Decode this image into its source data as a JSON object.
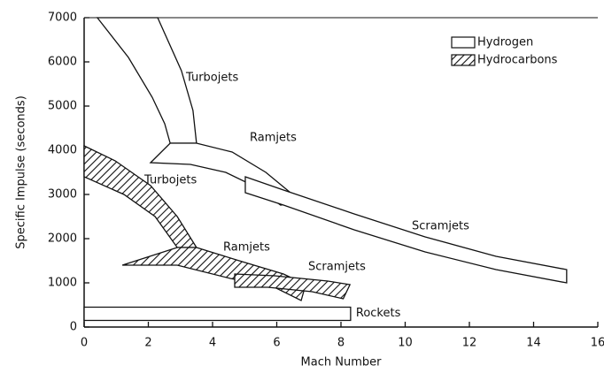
{
  "chart_data": {
    "type": "band",
    "xlabel": "Mach Number",
    "ylabel": "Specific Impulse (seconds)",
    "xlim": [
      0,
      16
    ],
    "ylim": [
      0,
      7000
    ],
    "xticks": [
      0,
      2,
      4,
      6,
      8,
      10,
      12,
      14,
      16
    ],
    "yticks": [
      0,
      1000,
      2000,
      3000,
      4000,
      5000,
      6000,
      7000
    ],
    "series": [
      {
        "name": "Hydrogen",
        "pattern": "none",
        "bands": [
          {
            "label": "Turbojets",
            "x": [
              0.41,
              1.38,
              2.12,
              2.51,
              2.68,
              3.5,
              3.39,
              3.03,
              2.29
            ],
            "y": [
              7000,
              6100,
              5200,
              4600,
              4160,
              4160,
              4900,
              5800,
              7000
            ]
          },
          {
            "label": "Ramjets",
            "x": [
              2.07,
              2.68,
              3.5,
              4.61,
              5.66,
              6.76,
              6.12,
              5.38,
              4.41,
              3.31
            ],
            "y": [
              3720,
              4160,
              4160,
              3960,
              3500,
              2840,
              2760,
              3160,
              3500,
              3680
            ]
          },
          {
            "label": "Scramjets",
            "x": [
              5.02,
              6.21,
              8.41,
              10.62,
              12.83,
              15.03,
              15.03,
              12.83,
              10.62,
              8.41,
              6.21,
              5.02
            ],
            "y": [
              3400,
              3100,
              2560,
              2040,
              1600,
              1300,
              1000,
              1300,
              1700,
              2200,
              2760,
              3040
            ]
          }
        ]
      },
      {
        "name": "Hydrocarbons",
        "pattern": "hatch",
        "bands": [
          {
            "label": "Turbojets",
            "x": [
              0,
              0.97,
              2.07,
              2.9,
              3.5,
              2.9,
              2.21,
              1.24,
              0
            ],
            "y": [
              4100,
              3760,
              3200,
              2500,
              1800,
              1800,
              2500,
              3000,
              3400
            ]
          },
          {
            "label": "Ramjets",
            "x": [
              1.19,
              2.9,
              3.5,
              4.83,
              6.21,
              6.9,
              6.76,
              5.93,
              4.55,
              2.9
            ],
            "y": [
              1400,
              1800,
              1800,
              1500,
              1200,
              960,
              600,
              900,
              1100,
              1400
            ]
          },
          {
            "label": "Scramjets",
            "x": [
              4.69,
              5.93,
              7.59,
              8.28,
              8.07,
              7.1,
              5.72,
              4.69
            ],
            "y": [
              1200,
              1160,
              1040,
              960,
              640,
              800,
              900,
              900
            ]
          }
        ]
      }
    ],
    "rockets": {
      "label": "Rockets",
      "x": [
        0,
        8.3,
        8.3,
        0
      ],
      "y": [
        450,
        450,
        150,
        150
      ]
    }
  }
}
